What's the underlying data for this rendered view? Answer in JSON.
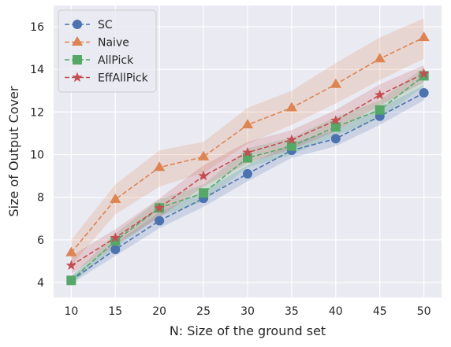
{
  "chart_data": {
    "type": "line",
    "xlabel": "N: Size of the ground set",
    "ylabel": "Size of Output Cover",
    "x": [
      10,
      15,
      20,
      25,
      30,
      35,
      40,
      45,
      50
    ],
    "xlim": [
      8.0,
      52.0
    ],
    "ylim": [
      3.3,
      17.0
    ],
    "x_ticks": [
      10,
      15,
      20,
      25,
      30,
      35,
      40,
      45,
      50
    ],
    "y_ticks": [
      4,
      6,
      8,
      10,
      12,
      14,
      16
    ],
    "grid": true,
    "legend_position": "top-left",
    "series": [
      {
        "name": "SC",
        "color": "#4c72b0",
        "marker": "circle",
        "values": [
          4.1,
          5.55,
          6.9,
          7.95,
          9.1,
          10.2,
          10.75,
          11.8,
          12.9
        ],
        "lower": [
          3.95,
          5.25,
          6.55,
          7.55,
          8.75,
          9.85,
          10.4,
          11.4,
          12.55
        ],
        "upper": [
          4.3,
          5.85,
          7.3,
          8.3,
          9.5,
          10.55,
          11.15,
          12.2,
          13.25
        ]
      },
      {
        "name": "Naive",
        "color": "#dd8452",
        "marker": "triangle",
        "values": [
          5.4,
          7.9,
          9.4,
          9.9,
          11.4,
          12.2,
          13.3,
          14.5,
          15.5
        ],
        "lower": [
          4.8,
          7.2,
          8.5,
          9.15,
          10.5,
          11.4,
          12.4,
          13.5,
          14.5
        ],
        "upper": [
          6.0,
          8.6,
          10.2,
          10.6,
          12.2,
          13.0,
          14.3,
          15.5,
          16.4
        ]
      },
      {
        "name": "AllPick",
        "color": "#55a868",
        "marker": "square",
        "values": [
          4.1,
          5.95,
          7.5,
          8.2,
          9.85,
          10.4,
          11.3,
          12.1,
          13.7
        ],
        "lower": [
          3.95,
          5.65,
          7.1,
          7.8,
          9.4,
          10.0,
          10.9,
          11.7,
          13.2
        ],
        "upper": [
          4.3,
          6.3,
          7.9,
          8.6,
          10.3,
          10.8,
          11.75,
          12.55,
          14.1
        ]
      },
      {
        "name": "EffAllPick",
        "color": "#c44e52",
        "marker": "star",
        "values": [
          4.8,
          6.1,
          7.5,
          9.0,
          10.1,
          10.7,
          11.6,
          12.8,
          13.8
        ],
        "lower": [
          4.4,
          5.75,
          7.05,
          8.5,
          9.6,
          10.25,
          11.1,
          12.3,
          13.4
        ],
        "upper": [
          5.25,
          6.5,
          7.95,
          9.5,
          10.6,
          11.15,
          12.1,
          13.3,
          14.2
        ]
      }
    ]
  }
}
